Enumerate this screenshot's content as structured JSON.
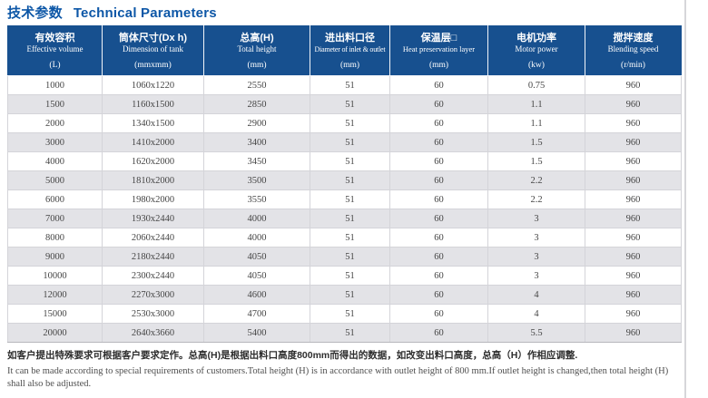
{
  "page": {
    "title_zh": "技术参数",
    "title_en": "Technical Parameters",
    "colors": {
      "title_blue": "#0d57a7",
      "header_bg": "#17508f",
      "row_alt_gray": "#e3e3e7",
      "cell_text": "#454545"
    }
  },
  "table": {
    "columns": [
      {
        "cn": "有效容积",
        "en": "Effective volume",
        "unit": "(L)"
      },
      {
        "cn": "筒体尺寸(Dx h)",
        "en": "Dimension of tank",
        "unit": "(mmxmm)"
      },
      {
        "cn": "总高(H)",
        "en": "Total height",
        "unit": "(mm)"
      },
      {
        "cn": "进出料口径",
        "en": "Diameter of inlet & outlet",
        "unit": "(mm)"
      },
      {
        "cn": "保温层□",
        "en": "Heat preservation layer",
        "unit": "(mm)"
      },
      {
        "cn": "电机功率",
        "en": "Motor power",
        "unit": "(kw)"
      },
      {
        "cn": "搅拌速度",
        "en": "Blending speed",
        "unit": "(r/min)"
      }
    ],
    "rows": [
      [
        "1000",
        "1060x1220",
        "2550",
        "51",
        "60",
        "0.75",
        "960"
      ],
      [
        "1500",
        "1160x1500",
        "2850",
        "51",
        "60",
        "1.1",
        "960"
      ],
      [
        "2000",
        "1340x1500",
        "2900",
        "51",
        "60",
        "1.1",
        "960"
      ],
      [
        "3000",
        "1410x2000",
        "3400",
        "51",
        "60",
        "1.5",
        "960"
      ],
      [
        "4000",
        "1620x2000",
        "3450",
        "51",
        "60",
        "1.5",
        "960"
      ],
      [
        "5000",
        "1810x2000",
        "3500",
        "51",
        "60",
        "2.2",
        "960"
      ],
      [
        "6000",
        "1980x2000",
        "3550",
        "51",
        "60",
        "2.2",
        "960"
      ],
      [
        "7000",
        "1930x2440",
        "4000",
        "51",
        "60",
        "3",
        "960"
      ],
      [
        "8000",
        "2060x2440",
        "4000",
        "51",
        "60",
        "3",
        "960"
      ],
      [
        "9000",
        "2180x2440",
        "4050",
        "51",
        "60",
        "3",
        "960"
      ],
      [
        "10000",
        "2300x2440",
        "4050",
        "51",
        "60",
        "3",
        "960"
      ],
      [
        "12000",
        "2270x3000",
        "4600",
        "51",
        "60",
        "4",
        "960"
      ],
      [
        "15000",
        "2530x3000",
        "4700",
        "51",
        "60",
        "4",
        "960"
      ],
      [
        "20000",
        "2640x3660",
        "5400",
        "51",
        "60",
        "5.5",
        "960"
      ]
    ]
  },
  "footnote": {
    "zh": "如客户提出特殊要求可根据客户要求定作。总高(H)是根据出料口高度800mm而得出的数据，如改变出料口高度，总高（H）作相应调整.",
    "en": "It can be made according to special requirements of customers.Total height (H) is in accordance with outlet height of 800 mm.If outlet height is changed,then total height (H) shall also be adjusted."
  }
}
